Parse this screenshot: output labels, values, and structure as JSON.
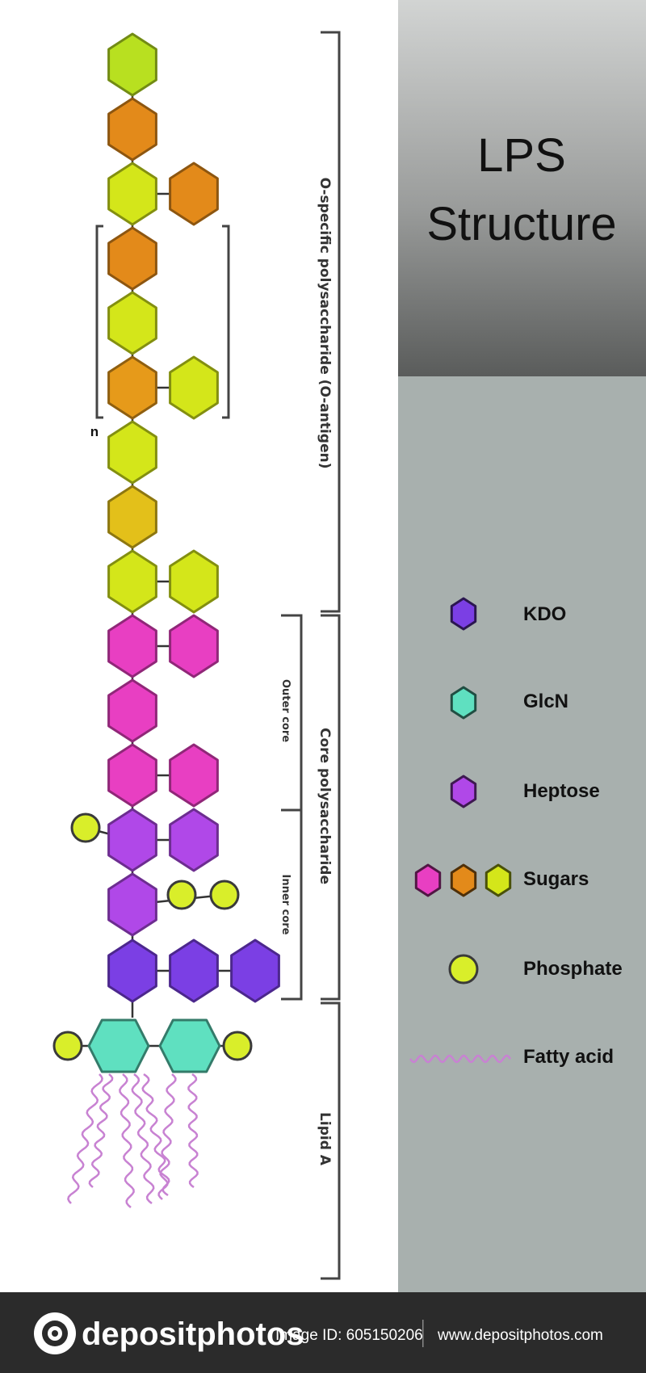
{
  "title": {
    "line1": "LPS",
    "line2": "Structure"
  },
  "regions": {
    "o_antigen": "O-specific polysaccharide (O-antigen)",
    "core": "Core polysaccharide",
    "outer_core": "Outer core",
    "inner_core": "Inner core",
    "lipid_a": "Lipid A"
  },
  "repeat_label": "n",
  "legend": [
    {
      "id": "kdo",
      "label": "KDO"
    },
    {
      "id": "glcn",
      "label": "GlcN"
    },
    {
      "id": "heptose",
      "label": "Heptose"
    },
    {
      "id": "sugars",
      "label": "Sugars"
    },
    {
      "id": "phosphate",
      "label": "Phosphate"
    },
    {
      "id": "fatty-acid",
      "label": "Fatty acid"
    }
  ],
  "colors": {
    "kdo": "#7b3fe4",
    "glcn": "#5fe0c0",
    "heptose": "#b048e8",
    "sugar_pink": "#e83fc2",
    "sugar_orange": "#e38a1a",
    "sugar_yellow": "#d4e61a",
    "phosphate": "#d9ee2a",
    "fatty_acid": "#c882d2",
    "panel": "#a8b0ae",
    "footer": "#2b2b2b"
  },
  "footer": {
    "brand": "depositphotos",
    "image_id": "Image ID: 605150206",
    "website": "www.depositphotos.com"
  }
}
